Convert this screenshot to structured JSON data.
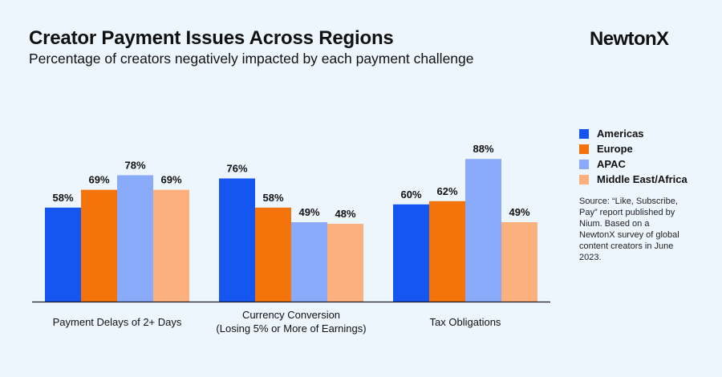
{
  "header": {
    "title": "Creator Payment Issues Across Regions",
    "subtitle": "Percentage of creators negatively impacted by each payment challenge",
    "logo": "NewtonX"
  },
  "source_note": "Source: “Like, Subscribe, Pay” report published by Nium. Based on a NewtonX survey of global content creators in June 2023.",
  "chart_data": {
    "type": "bar",
    "title": "Creator Payment Issues Across Regions",
    "subtitle": "Percentage of creators negatively impacted by each payment challenge",
    "xlabel": "",
    "ylabel": "",
    "ylim": [
      0,
      100
    ],
    "grid": false,
    "legend_position": "right",
    "value_suffix": "%",
    "categories": [
      [
        "Payment Delays of 2+ Days"
      ],
      [
        "Currency Conversion",
        "(Losing 5% or More of Earnings)"
      ],
      [
        "Tax Obligations"
      ]
    ],
    "series": [
      {
        "name": "Americas",
        "color": "#1556f0",
        "values": [
          58,
          76,
          60
        ]
      },
      {
        "name": "Europe",
        "color": "#f4730a",
        "values": [
          69,
          58,
          62
        ]
      },
      {
        "name": "APAC",
        "color": "#8aabfa",
        "values": [
          78,
          49,
          88
        ]
      },
      {
        "name": "Middle East/Africa",
        "color": "#fcb07e",
        "values": [
          69,
          48,
          49
        ]
      }
    ]
  }
}
